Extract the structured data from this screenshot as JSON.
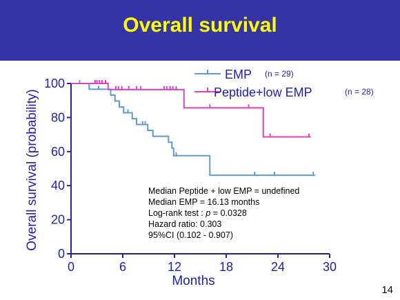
{
  "slide": {
    "title": "Overall survival",
    "page_number": "14",
    "banner_color": "#3434a6",
    "title_color": "#ffff00"
  },
  "stats": {
    "line1": "Median Peptide + low EMP = undefined",
    "line2": "Median EMP = 16.13 months",
    "line3_prefix": "Log-rank test : ",
    "line3_p": "p",
    "line3_suffix": " = 0.0328",
    "line4": "Hazard ratio: 0.303",
    "line5": "95%CI (0.102 - 0.907)"
  },
  "chart_data": {
    "type": "line",
    "step": true,
    "xlabel": "Months",
    "ylabel": "Overall survival (probability)",
    "xlim": [
      0,
      30
    ],
    "ylim": [
      0,
      100
    ],
    "xticks": [
      0,
      6,
      12,
      18,
      24,
      30
    ],
    "yticks": [
      0,
      20,
      40,
      60,
      80,
      100
    ],
    "axis_color": "#2020b0",
    "legend_position": "top-right",
    "series": [
      {
        "name": "EMP",
        "n_label": "(n = 29)",
        "color": "#5b9bd5",
        "steps": [
          [
            0,
            100
          ],
          [
            2.1,
            96.6
          ],
          [
            4.6,
            93.1
          ],
          [
            5.1,
            89.7
          ],
          [
            5.6,
            86.2
          ],
          [
            6.1,
            82.8
          ],
          [
            7.1,
            79.3
          ],
          [
            7.6,
            75.9
          ],
          [
            8.9,
            72.4
          ],
          [
            9.5,
            69.0
          ],
          [
            11.3,
            65.5
          ],
          [
            11.7,
            62.1
          ],
          [
            11.9,
            57.6
          ],
          [
            16.1,
            46.1
          ],
          [
            28.3,
            46.1
          ]
        ],
        "censored": [
          [
            1.0,
            100
          ],
          [
            3.2,
            96.6
          ],
          [
            6.6,
            82.8
          ],
          [
            8.3,
            75.9
          ],
          [
            8.6,
            75.9
          ],
          [
            12.2,
            57.6
          ],
          [
            21.3,
            46.1
          ],
          [
            23.6,
            46.1
          ],
          [
            28.1,
            46.1
          ]
        ]
      },
      {
        "name": "Peptide+low EMP",
        "n_label": "(n = 28)",
        "color": "#e040c0",
        "steps": [
          [
            0,
            100
          ],
          [
            4.3,
            96.4
          ],
          [
            13.1,
            85.7
          ],
          [
            22.3,
            68.6
          ],
          [
            27.8,
            68.6
          ]
        ],
        "censored": [
          [
            2.8,
            100
          ],
          [
            3.0,
            100
          ],
          [
            3.3,
            100
          ],
          [
            3.6,
            100
          ],
          [
            4.0,
            100
          ],
          [
            5.2,
            96.4
          ],
          [
            5.5,
            96.4
          ],
          [
            5.9,
            96.4
          ],
          [
            6.7,
            96.4
          ],
          [
            7.6,
            96.4
          ],
          [
            8.1,
            96.4
          ],
          [
            10.8,
            96.4
          ],
          [
            11.1,
            96.4
          ],
          [
            11.5,
            96.4
          ],
          [
            11.8,
            96.4
          ],
          [
            12.2,
            96.4
          ],
          [
            16.1,
            85.7
          ],
          [
            20.6,
            85.7
          ],
          [
            23.1,
            68.6
          ],
          [
            27.6,
            68.6
          ]
        ]
      }
    ]
  }
}
